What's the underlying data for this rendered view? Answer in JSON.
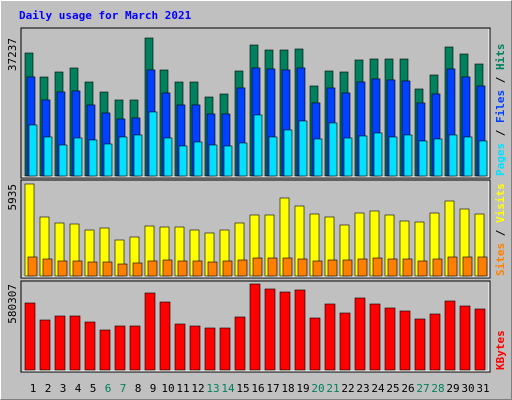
{
  "chart_data": [
    {
      "type": "bar",
      "title": "Daily usage for March 2021",
      "ylim": [
        0,
        37237
      ],
      "series": [
        {
          "name": "Hits",
          "color": "#00805c",
          "values": [
            33190,
            26713,
            28062,
            29142,
            25364,
            22666,
            20507,
            20507,
            37237,
            28602,
            25364,
            25364,
            21317,
            22126,
            28332,
            35348,
            33999,
            33999,
            34269,
            24285,
            28332,
            28062,
            31301,
            31571,
            31571,
            31571,
            23475,
            27253,
            34808,
            32919,
            30221
          ]
        },
        {
          "name": "Files",
          "color": "#0040ff",
          "values": [
            26730,
            20520,
            22680,
            22950,
            19170,
            17010,
            15390,
            15660,
            28620,
            22410,
            19170,
            19170,
            16740,
            16740,
            23760,
            29160,
            28890,
            28620,
            29160,
            19710,
            23760,
            22410,
            25380,
            26190,
            25920,
            25650,
            19710,
            22140,
            28890,
            26730,
            24300
          ]
        },
        {
          "name": "Pages",
          "color": "#00e0ff",
          "values": [
            13770,
            10530,
            8370,
            10260,
            9720,
            8640,
            10530,
            11070,
            17280,
            10260,
            8100,
            9180,
            8370,
            8100,
            8910,
            16470,
            10530,
            12420,
            14850,
            9990,
            14310,
            10260,
            10800,
            11610,
            10530,
            11070,
            9450,
            9990,
            11070,
            10530,
            9450
          ]
        }
      ],
      "legend_separator": " / "
    },
    {
      "type": "bar",
      "ylim": [
        0,
        5935
      ],
      "series": [
        {
          "name": "Visits",
          "color": "#ffff00",
          "values": [
            5935,
            3806,
            3419,
            3354,
            2967,
            3096,
            2322,
            2516,
            3225,
            3161,
            3161,
            2967,
            2774,
            2967,
            3419,
            3935,
            3935,
            5031,
            4515,
            3999,
            3806,
            3290,
            4064,
            4193,
            3935,
            3548,
            3483,
            4064,
            4838,
            4322,
            3999
          ]
        },
        {
          "name": "Sites",
          "color": "#ff8000",
          "values": [
            1226,
            1097,
            968,
            968,
            903,
            903,
            774,
            839,
            968,
            1032,
            968,
            968,
            903,
            968,
            1032,
            1161,
            1161,
            1161,
            1097,
            968,
            1032,
            1032,
            1097,
            1161,
            1097,
            1097,
            968,
            1097,
            1226,
            1226,
            1226
          ]
        }
      ],
      "legend_separator": " / "
    },
    {
      "type": "bar",
      "ylim": [
        0,
        580307
      ],
      "series": [
        {
          "name": "KBytes",
          "color": "#ff0000",
          "values": [
            452116,
            337400,
            364392,
            364392,
            323904,
            269920,
            296912,
            296912,
            519596,
            458864,
            310408,
            296912,
            283416,
            283416,
            357644,
            580307,
            546588,
            526344,
            539840,
            350896,
            445368,
            384636,
            485856,
            445368,
            418376,
            398132,
            344148,
            377888,
            465612,
            431872,
            411628
          ]
        }
      ],
      "categories": [
        1,
        2,
        3,
        4,
        5,
        6,
        7,
        8,
        9,
        10,
        11,
        12,
        13,
        14,
        15,
        16,
        17,
        18,
        19,
        20,
        21,
        22,
        23,
        24,
        25,
        26,
        27,
        28,
        29,
        30,
        31
      ],
      "category_colors": [
        "#000000",
        "#000000",
        "#000000",
        "#000000",
        "#000000",
        "#00805c",
        "#00805c",
        "#000000",
        "#000000",
        "#000000",
        "#000000",
        "#000000",
        "#00805c",
        "#00805c",
        "#000000",
        "#000000",
        "#000000",
        "#000000",
        "#000000",
        "#00805c",
        "#00805c",
        "#000000",
        "#000000",
        "#000000",
        "#000000",
        "#000000",
        "#00805c",
        "#00805c",
        "#000000",
        "#000000",
        "#000000"
      ]
    }
  ]
}
